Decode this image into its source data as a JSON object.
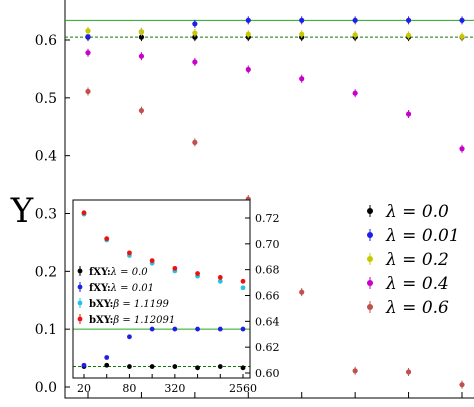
{
  "chart_data": [
    {
      "type": "scatter",
      "title": "",
      "xlabel": "",
      "ylabel": "Υ",
      "x_scale": "log2",
      "x": [
        20,
        40,
        80,
        160,
        320,
        640,
        1280,
        2560
      ],
      "ylim": [
        -0.02,
        0.65
      ],
      "yticks": [
        "0.0",
        "0.1",
        "0.2",
        "0.3",
        "0.4",
        "0.5",
        "0.6"
      ],
      "series": [
        {
          "name": "λ = 0.0",
          "color": "#000000",
          "values": [
            0.605,
            0.605,
            0.605,
            0.605,
            0.605,
            0.605,
            0.605,
            0.605
          ]
        },
        {
          "name": "λ = 0.01",
          "color": "#1f1fe6",
          "values": [
            0.606,
            0.614,
            0.628,
            0.634,
            0.634,
            0.634,
            0.634,
            0.634
          ]
        },
        {
          "name": "λ = 0.2",
          "color": "#c8c800",
          "values": [
            0.616,
            0.614,
            0.612,
            0.61,
            0.61,
            0.609,
            0.608,
            0.606
          ]
        },
        {
          "name": "λ = 0.4",
          "color": "#c800c8",
          "values": [
            0.578,
            0.572,
            0.562,
            0.549,
            0.533,
            0.508,
            0.472,
            0.412
          ]
        },
        {
          "name": "λ = 0.6",
          "color": "#c0504d",
          "values": [
            0.511,
            0.478,
            0.423,
            0.325,
            0.164,
            0.028,
            0.026,
            0.004
          ]
        }
      ],
      "hlines": [
        {
          "y": 0.634,
          "style": "solid",
          "color": "#22aa22"
        },
        {
          "y": 0.605,
          "style": "dashed",
          "color": "#117711"
        }
      ],
      "legend": {
        "placement": "right"
      }
    },
    {
      "type": "scatter",
      "title": "",
      "xlabel": "",
      "ylabel": "",
      "x_scale": "log2",
      "x": [
        20,
        40,
        80,
        160,
        320,
        640,
        1280,
        2560
      ],
      "xticks": [
        "20",
        "80",
        "320",
        "2560"
      ],
      "ylim": [
        0.598,
        0.732
      ],
      "yticks": [
        "0.60",
        "0.62",
        "0.64",
        "0.66",
        "0.68",
        "0.70",
        "0.72"
      ],
      "series": [
        {
          "name": "fXY: λ = 0.0",
          "color": "#000000",
          "values": [
            0.605,
            0.606,
            0.605,
            0.605,
            0.605,
            0.604,
            0.605,
            0.604
          ]
        },
        {
          "name": "fXY: λ = 0.01",
          "color": "#1f1fe6",
          "values": [
            0.606,
            0.612,
            0.628,
            0.634,
            0.634,
            0.634,
            0.634,
            0.634
          ]
        },
        {
          "name": "bXY: β = 1.1199",
          "color": "#22c5e0",
          "values": [
            0.723,
            0.703,
            0.691,
            0.685,
            0.679,
            0.675,
            0.671,
            0.666
          ]
        },
        {
          "name": "bXY: β = 1.12091",
          "color": "#ee1111",
          "values": [
            0.724,
            0.704,
            0.693,
            0.687,
            0.681,
            0.677,
            0.674,
            0.671
          ]
        }
      ],
      "hlines": [
        {
          "y": 0.634,
          "style": "solid",
          "color": "#22aa22"
        },
        {
          "y": 0.605,
          "style": "dashed",
          "color": "#117711"
        }
      ],
      "legend": {
        "placement": "left"
      }
    }
  ],
  "main_legend": [
    {
      "prefix": "",
      "label": "λ = 0.0"
    },
    {
      "prefix": "",
      "label": "λ = 0.01"
    },
    {
      "prefix": "",
      "label": "λ = 0.2"
    },
    {
      "prefix": "",
      "label": "λ = 0.4"
    },
    {
      "prefix": "",
      "label": "λ = 0.6"
    }
  ],
  "inset_legend": [
    {
      "prefix": "fXY:",
      "label": "λ = 0.0"
    },
    {
      "prefix": "fXY:",
      "label": "λ = 0.01"
    },
    {
      "prefix": "bXY:",
      "label": "β = 1.1199"
    },
    {
      "prefix": "bXY:",
      "label": "β = 1.12091"
    }
  ]
}
